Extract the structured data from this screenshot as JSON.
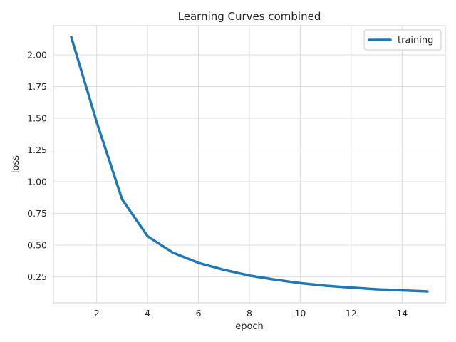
{
  "chart_data": {
    "type": "line",
    "title": "Learning Curves combined",
    "xlabel": "epoch",
    "ylabel": "loss",
    "xlim": [
      0.3,
      15.7
    ],
    "ylim": [
      0.045,
      2.23
    ],
    "xticks": [
      "2",
      "4",
      "6",
      "8",
      "10",
      "12",
      "14"
    ],
    "yticks": [
      "0.25",
      "0.50",
      "0.75",
      "1.00",
      "1.25",
      "1.50",
      "1.75",
      "2.00"
    ],
    "grid": true,
    "legend_position": "top-right",
    "x": [
      1,
      2,
      3,
      4,
      5,
      6,
      7,
      8,
      9,
      10,
      11,
      12,
      13,
      14,
      15
    ],
    "series": [
      {
        "name": "training",
        "color": "#1f77b4",
        "values": [
          2.14,
          1.47,
          0.86,
          0.57,
          0.44,
          0.36,
          0.305,
          0.26,
          0.228,
          0.2,
          0.18,
          0.165,
          0.152,
          0.143,
          0.135
        ]
      }
    ]
  }
}
